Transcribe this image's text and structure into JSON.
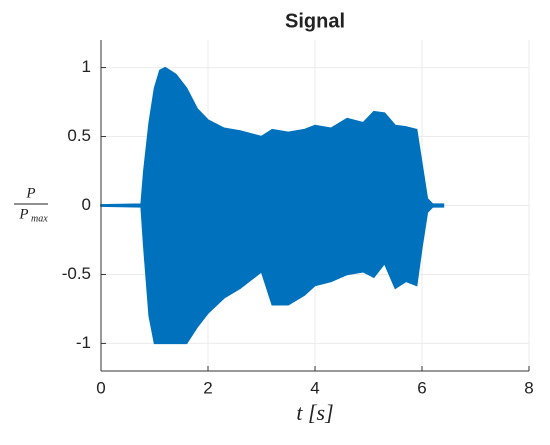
{
  "chart_data": {
    "type": "area",
    "title": "Signal",
    "xlabel": "t [s]",
    "ylabel": {
      "numerator": "P",
      "denominator": "P",
      "subscript": "max"
    },
    "x": [
      0,
      0.75,
      0.8,
      0.9,
      1.0,
      1.1,
      1.2,
      1.4,
      1.6,
      1.8,
      2.0,
      2.3,
      2.6,
      3.0,
      3.2,
      3.5,
      3.8,
      4.0,
      4.3,
      4.6,
      4.9,
      5.1,
      5.3,
      5.5,
      5.7,
      5.9,
      6.0,
      6.1,
      6.2,
      6.4
    ],
    "y_max": [
      0.005,
      0.01,
      0.25,
      0.6,
      0.85,
      0.98,
      1.0,
      0.95,
      0.85,
      0.7,
      0.62,
      0.56,
      0.54,
      0.5,
      0.55,
      0.53,
      0.55,
      0.58,
      0.56,
      0.63,
      0.6,
      0.68,
      0.67,
      0.58,
      0.57,
      0.55,
      0.3,
      0.05,
      0.01,
      0.01
    ],
    "y_min": [
      -0.005,
      -0.01,
      -0.3,
      -0.8,
      -1,
      -1,
      -1,
      -1,
      -1,
      -0.88,
      -0.78,
      -0.67,
      -0.6,
      -0.48,
      -0.72,
      -0.72,
      -0.65,
      -0.58,
      -0.55,
      -0.5,
      -0.48,
      -0.52,
      -0.42,
      -0.6,
      -0.55,
      -0.58,
      -0.3,
      -0.05,
      -0.01,
      -0.01
    ],
    "color": "#0072bd",
    "xlim": [
      0,
      8
    ],
    "xticks": [
      0,
      2,
      4,
      6,
      8
    ],
    "ylim": [
      -1.2,
      1.2
    ],
    "yticks": [
      -1,
      -0.5,
      0,
      0.5,
      1
    ],
    "grid": true
  }
}
